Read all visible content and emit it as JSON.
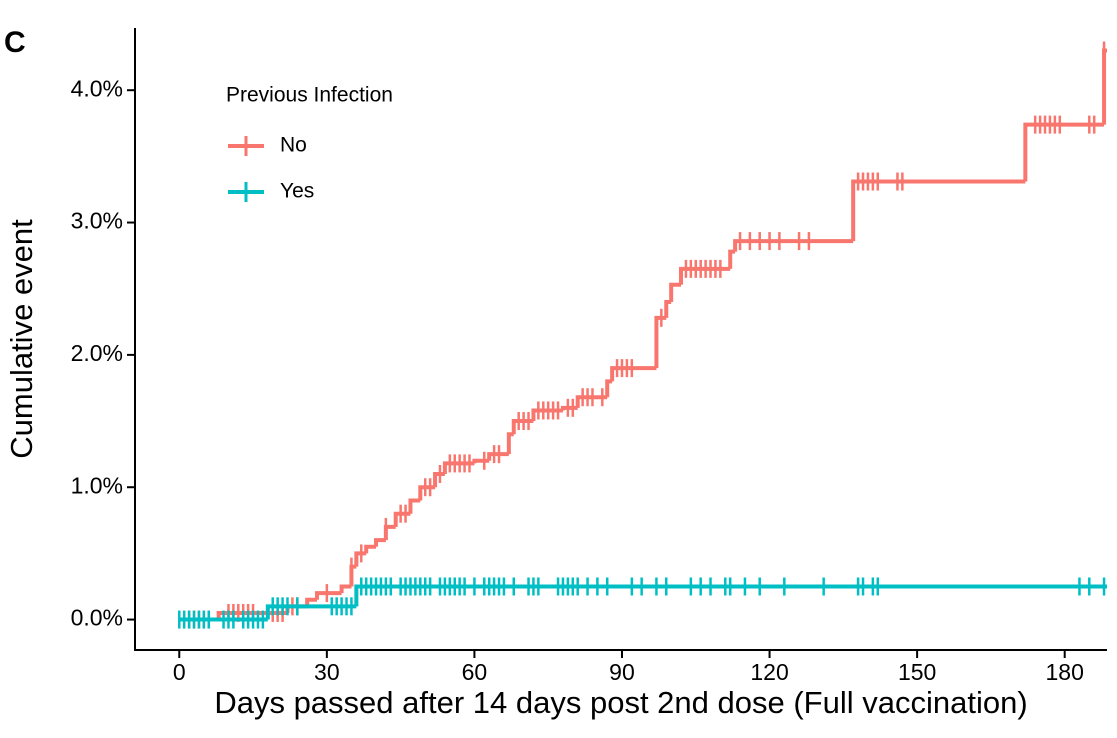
{
  "panel_label": "C",
  "chart_data": {
    "type": "step",
    "xlabel": "Days passed after 14 days post 2nd dose (Full vaccination)",
    "ylabel": "Cumulative event",
    "legend_title": "Previous Infection",
    "legend_position": "top-left",
    "xlim": [
      -9,
      188.6
    ],
    "xticks": [
      0,
      30,
      60,
      90,
      120,
      150,
      180
    ],
    "ylim": [
      -0.23,
      4.47
    ],
    "yticks": [
      {
        "value": 0,
        "label": "0.0%"
      },
      {
        "value": 1,
        "label": "1.0%"
      },
      {
        "value": 2,
        "label": "2.0%"
      },
      {
        "value": 3,
        "label": "3.0%"
      },
      {
        "value": 4,
        "label": "4.0%"
      }
    ],
    "series": [
      {
        "name": "No",
        "color": "#f8766d",
        "x": [
          0,
          8,
          22,
          26,
          28,
          33,
          35,
          36,
          38,
          40,
          42,
          44,
          47,
          49,
          52,
          54,
          60,
          63,
          67,
          68,
          72,
          78,
          81,
          87,
          88,
          97,
          99,
          100,
          102,
          112,
          113,
          137,
          172,
          188
        ],
        "values": [
          0,
          0.05,
          0.1,
          0.15,
          0.2,
          0.25,
          0.4,
          0.5,
          0.55,
          0.6,
          0.7,
          0.8,
          0.9,
          1.0,
          1.1,
          1.18,
          1.2,
          1.25,
          1.4,
          1.5,
          1.58,
          1.6,
          1.68,
          1.8,
          1.9,
          2.28,
          2.4,
          2.53,
          2.65,
          2.78,
          2.86,
          3.31,
          3.74,
          4.3
        ],
        "censored": [
          2,
          3,
          4,
          5,
          6,
          10,
          11,
          12,
          13,
          14,
          15,
          19,
          20,
          21,
          23,
          24,
          30,
          35,
          37,
          42,
          45,
          46,
          50,
          51,
          53,
          55,
          56,
          57,
          58,
          59,
          62,
          64,
          65,
          69,
          70,
          71,
          73,
          74,
          75,
          76,
          77,
          79,
          80,
          82,
          83,
          84,
          86,
          89,
          90,
          91,
          92,
          98,
          103,
          104,
          105,
          106,
          107,
          108,
          109,
          110,
          114,
          116,
          118,
          120,
          122,
          126,
          128,
          138,
          139,
          140,
          141,
          142,
          146,
          147,
          174,
          175,
          176,
          177,
          178,
          179,
          185,
          186,
          188
        ]
      },
      {
        "name": "Yes",
        "color": "#00bfc4",
        "x": [
          0,
          18,
          36
        ],
        "values": [
          0,
          0.1,
          0.25
        ],
        "censored": [
          0,
          1,
          2,
          3,
          4,
          5,
          6,
          9,
          10,
          11,
          13,
          14,
          15,
          16,
          17,
          19,
          20,
          21,
          22,
          24,
          31,
          32,
          33,
          34,
          35,
          37,
          38,
          39,
          40,
          41,
          42,
          43,
          45,
          46,
          47,
          48,
          49,
          50,
          51,
          53,
          54,
          55,
          56,
          57,
          58,
          60,
          62,
          63,
          64,
          65,
          66,
          68,
          71,
          72,
          73,
          77,
          78,
          79,
          80,
          81,
          83,
          85,
          87,
          92,
          94,
          97,
          99,
          104,
          106,
          108,
          111,
          112,
          115,
          118,
          123,
          131,
          138,
          139,
          141,
          142,
          183,
          185,
          188
        ]
      }
    ]
  }
}
